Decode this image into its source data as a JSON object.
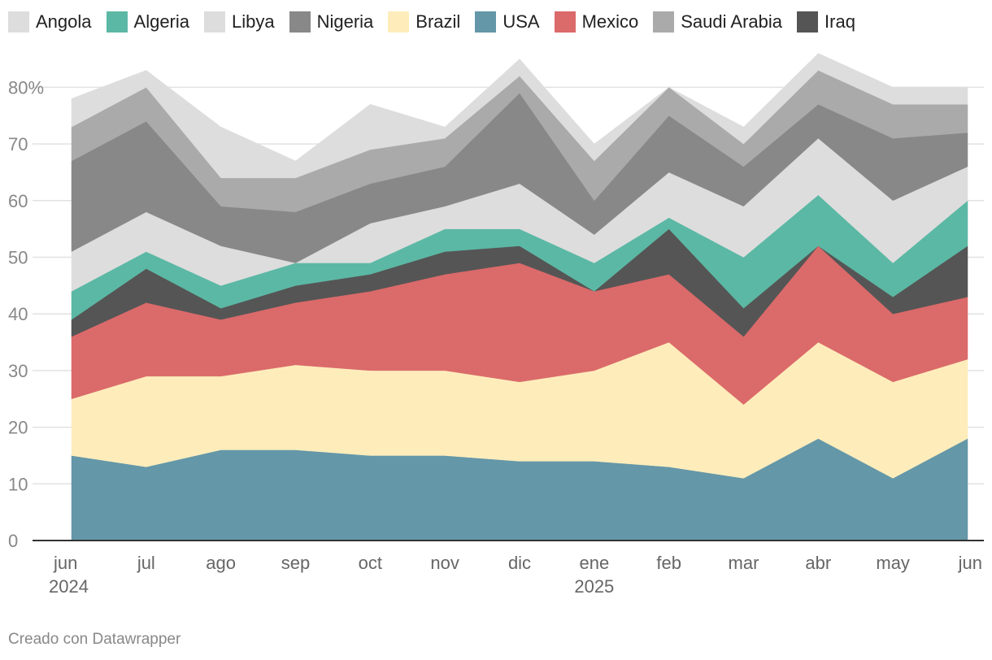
{
  "chart_data": {
    "type": "area",
    "stacked": true,
    "title": "",
    "xlabel": "",
    "ylabel": "",
    "ylim": [
      0,
      86
    ],
    "y_ticks": [
      0,
      10,
      20,
      30,
      40,
      50,
      60,
      70,
      80
    ],
    "y_tick_labels": [
      "0",
      "10",
      "20",
      "30",
      "40",
      "50",
      "60",
      "70",
      "80%"
    ],
    "grid": true,
    "legend_placement": "top",
    "categories": [
      "jun",
      "jul",
      "ago",
      "sep",
      "oct",
      "nov",
      "dic",
      "ene",
      "feb",
      "mar",
      "abr",
      "may",
      "jun"
    ],
    "year_labels": [
      {
        "index": 0,
        "label": "2024"
      },
      {
        "index": 7,
        "label": "2025"
      }
    ],
    "legend": [
      {
        "name": "Angola",
        "color": "#dddddd"
      },
      {
        "name": "Algeria",
        "color": "#5bb8a4"
      },
      {
        "name": "Libya",
        "color": "#dddddd"
      },
      {
        "name": "Nigeria",
        "color": "#888888"
      },
      {
        "name": "Brazil",
        "color": "#feedbb"
      },
      {
        "name": "USA",
        "color": "#6497a8"
      },
      {
        "name": "Mexico",
        "color": "#db6a6a"
      },
      {
        "name": "Saudi Arabia",
        "color": "#aaaaaa"
      },
      {
        "name": "Iraq",
        "color": "#555555"
      }
    ],
    "series": [
      {
        "name": "USA",
        "color": "#6497a8",
        "values": [
          15,
          13,
          16,
          16,
          15,
          15,
          14,
          14,
          13,
          11,
          18,
          11,
          18
        ]
      },
      {
        "name": "Brazil",
        "color": "#feedbb",
        "values": [
          10,
          16,
          13,
          15,
          15,
          15,
          14,
          16,
          22,
          13,
          17,
          17,
          14
        ]
      },
      {
        "name": "Mexico",
        "color": "#db6a6a",
        "values": [
          11,
          13,
          10,
          11,
          14,
          17,
          21,
          14,
          12,
          12,
          17,
          12,
          11
        ]
      },
      {
        "name": "Iraq",
        "color": "#555555",
        "values": [
          3,
          6,
          2,
          3,
          3,
          4,
          3,
          0,
          8,
          5,
          0,
          3,
          9
        ]
      },
      {
        "name": "Algeria",
        "color": "#5bb8a4",
        "values": [
          5,
          3,
          4,
          4,
          2,
          4,
          3,
          5,
          2,
          9,
          9,
          6,
          8
        ]
      },
      {
        "name": "Libya",
        "color": "#dddddd",
        "values": [
          7,
          7,
          7,
          0,
          7,
          4,
          8,
          5,
          8,
          9,
          10,
          11,
          6
        ]
      },
      {
        "name": "Nigeria",
        "color": "#888888",
        "values": [
          16,
          16,
          7,
          9,
          7,
          7,
          16,
          6,
          10,
          7,
          6,
          11,
          6
        ]
      },
      {
        "name": "Saudi Arabia",
        "color": "#aaaaaa",
        "values": [
          6,
          6,
          5,
          6,
          6,
          5,
          3,
          7,
          5,
          4,
          6,
          6,
          5
        ]
      },
      {
        "name": "Angola",
        "color": "#dddddd",
        "values": [
          5,
          3,
          9,
          3,
          8,
          2,
          3,
          3,
          0,
          3,
          3,
          3,
          3
        ]
      }
    ]
  },
  "footer": {
    "credit": "Creado con Datawrapper"
  }
}
